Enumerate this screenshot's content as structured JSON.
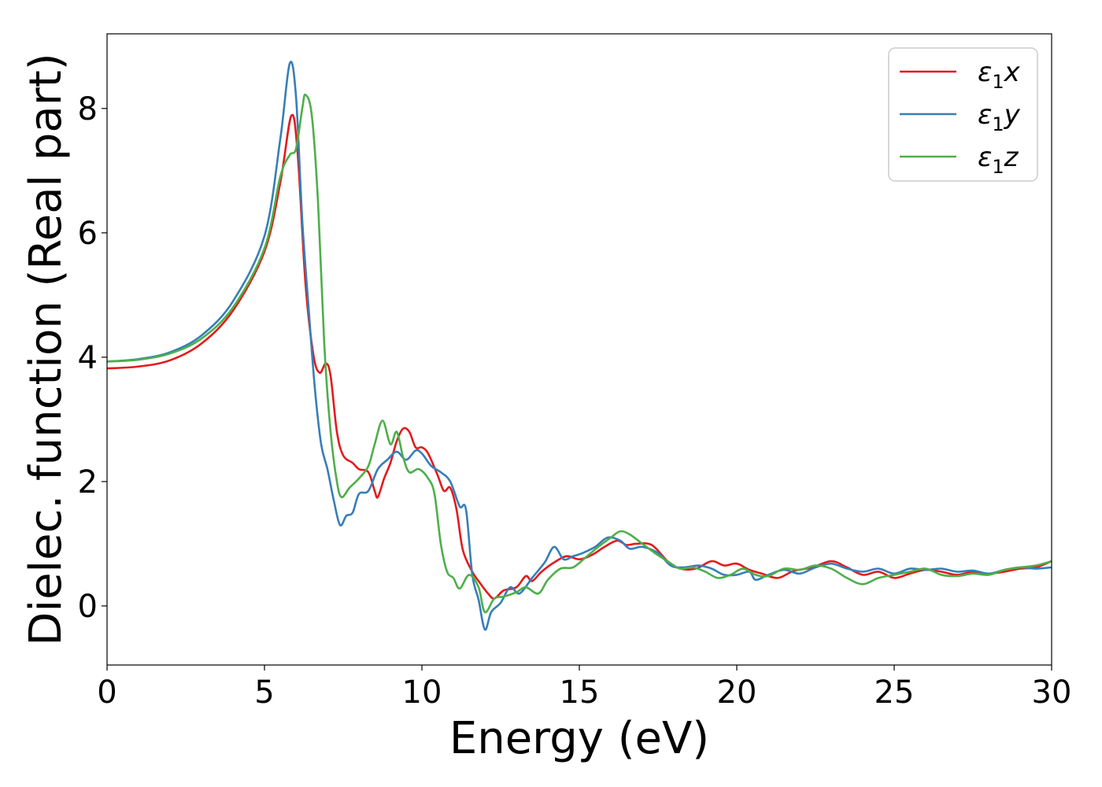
{
  "chart_data": {
    "type": "line",
    "title": "",
    "xlabel": "Energy (eV)",
    "ylabel": "Dielec. function (Real part)",
    "xlim": [
      0,
      30
    ],
    "ylim": [
      -0.95,
      9.2
    ],
    "xticks": [
      0,
      5,
      10,
      15,
      20,
      25,
      30
    ],
    "yticks": [
      0,
      2,
      4,
      6,
      8
    ],
    "grid": false,
    "legend_position": "top-right",
    "series": [
      {
        "name": "ε₁x",
        "legend_main": "ε",
        "legend_sub": "1",
        "legend_var": "x",
        "color": "#e41a1c",
        "points": [
          [
            0,
            3.82
          ],
          [
            1,
            3.85
          ],
          [
            2,
            3.95
          ],
          [
            3,
            4.22
          ],
          [
            4,
            4.75
          ],
          [
            5,
            5.7
          ],
          [
            5.5,
            6.8
          ],
          [
            5.85,
            7.88
          ],
          [
            6.05,
            7.3
          ],
          [
            6.3,
            5.2
          ],
          [
            6.55,
            4.05
          ],
          [
            6.75,
            3.75
          ],
          [
            6.95,
            3.9
          ],
          [
            7.1,
            3.7
          ],
          [
            7.3,
            2.8
          ],
          [
            7.5,
            2.42
          ],
          [
            7.8,
            2.3
          ],
          [
            8.0,
            2.2
          ],
          [
            8.3,
            2.15
          ],
          [
            8.5,
            1.85
          ],
          [
            8.6,
            1.75
          ],
          [
            8.8,
            2.05
          ],
          [
            9.0,
            2.3
          ],
          [
            9.2,
            2.65
          ],
          [
            9.4,
            2.85
          ],
          [
            9.6,
            2.8
          ],
          [
            9.8,
            2.55
          ],
          [
            10.0,
            2.55
          ],
          [
            10.2,
            2.45
          ],
          [
            10.5,
            2.1
          ],
          [
            10.7,
            1.85
          ],
          [
            10.9,
            1.9
          ],
          [
            11.1,
            1.55
          ],
          [
            11.3,
            0.9
          ],
          [
            11.6,
            0.55
          ],
          [
            11.8,
            0.4
          ],
          [
            12.1,
            0.2
          ],
          [
            12.3,
            0.12
          ],
          [
            12.6,
            0.25
          ],
          [
            13.0,
            0.3
          ],
          [
            13.3,
            0.48
          ],
          [
            13.5,
            0.4
          ],
          [
            13.8,
            0.55
          ],
          [
            14.2,
            0.7
          ],
          [
            14.6,
            0.8
          ],
          [
            15.0,
            0.75
          ],
          [
            15.4,
            0.82
          ],
          [
            15.8,
            0.95
          ],
          [
            16.2,
            1.05
          ],
          [
            16.5,
            0.98
          ],
          [
            16.8,
            1.0
          ],
          [
            17.3,
            0.98
          ],
          [
            17.8,
            0.72
          ],
          [
            18.2,
            0.6
          ],
          [
            18.7,
            0.6
          ],
          [
            19.2,
            0.72
          ],
          [
            19.6,
            0.65
          ],
          [
            20.0,
            0.68
          ],
          [
            20.4,
            0.58
          ],
          [
            20.8,
            0.52
          ],
          [
            21.3,
            0.45
          ],
          [
            21.8,
            0.56
          ],
          [
            22.4,
            0.62
          ],
          [
            23.0,
            0.72
          ],
          [
            23.5,
            0.62
          ],
          [
            24.0,
            0.5
          ],
          [
            24.5,
            0.55
          ],
          [
            25.0,
            0.45
          ],
          [
            25.5,
            0.52
          ],
          [
            26.0,
            0.58
          ],
          [
            26.5,
            0.55
          ],
          [
            27.0,
            0.5
          ],
          [
            27.5,
            0.55
          ],
          [
            28.0,
            0.52
          ],
          [
            28.5,
            0.55
          ],
          [
            29.0,
            0.6
          ],
          [
            29.5,
            0.62
          ],
          [
            30,
            0.72
          ]
        ]
      },
      {
        "name": "ε₁y",
        "legend_main": "ε",
        "legend_sub": "1",
        "legend_var": "y",
        "color": "#377eb8",
        "points": [
          [
            0,
            3.93
          ],
          [
            1,
            3.97
          ],
          [
            2,
            4.08
          ],
          [
            3,
            4.35
          ],
          [
            4,
            4.9
          ],
          [
            5,
            5.95
          ],
          [
            5.5,
            7.5
          ],
          [
            5.8,
            8.72
          ],
          [
            6.0,
            8.2
          ],
          [
            6.2,
            6.2
          ],
          [
            6.4,
            4.8
          ],
          [
            6.6,
            3.5
          ],
          [
            6.8,
            2.6
          ],
          [
            7.0,
            2.2
          ],
          [
            7.2,
            1.7
          ],
          [
            7.4,
            1.3
          ],
          [
            7.6,
            1.45
          ],
          [
            7.8,
            1.5
          ],
          [
            8.0,
            1.8
          ],
          [
            8.3,
            1.85
          ],
          [
            8.6,
            2.2
          ],
          [
            8.9,
            2.35
          ],
          [
            9.2,
            2.48
          ],
          [
            9.5,
            2.35
          ],
          [
            9.8,
            2.5
          ],
          [
            10.0,
            2.45
          ],
          [
            10.3,
            2.25
          ],
          [
            10.6,
            2.15
          ],
          [
            10.9,
            2.0
          ],
          [
            11.2,
            1.6
          ],
          [
            11.4,
            1.55
          ],
          [
            11.6,
            0.5
          ],
          [
            11.8,
            0.1
          ],
          [
            12.0,
            -0.38
          ],
          [
            12.2,
            -0.1
          ],
          [
            12.5,
            0.05
          ],
          [
            12.8,
            0.3
          ],
          [
            13.1,
            0.2
          ],
          [
            13.5,
            0.45
          ],
          [
            13.9,
            0.7
          ],
          [
            14.2,
            0.95
          ],
          [
            14.5,
            0.75
          ],
          [
            14.8,
            0.8
          ],
          [
            15.1,
            0.85
          ],
          [
            15.5,
            0.95
          ],
          [
            15.9,
            1.1
          ],
          [
            16.3,
            1.05
          ],
          [
            16.6,
            0.92
          ],
          [
            17.0,
            0.95
          ],
          [
            17.5,
            0.85
          ],
          [
            17.9,
            0.65
          ],
          [
            18.3,
            0.62
          ],
          [
            18.8,
            0.65
          ],
          [
            19.2,
            0.6
          ],
          [
            19.6,
            0.5
          ],
          [
            20.0,
            0.5
          ],
          [
            20.4,
            0.55
          ],
          [
            20.6,
            0.42
          ],
          [
            21.0,
            0.5
          ],
          [
            21.5,
            0.58
          ],
          [
            22.0,
            0.52
          ],
          [
            22.5,
            0.62
          ],
          [
            23.0,
            0.68
          ],
          [
            23.5,
            0.6
          ],
          [
            24.0,
            0.55
          ],
          [
            24.5,
            0.6
          ],
          [
            25.0,
            0.52
          ],
          [
            25.5,
            0.6
          ],
          [
            26.0,
            0.58
          ],
          [
            26.5,
            0.6
          ],
          [
            27.0,
            0.55
          ],
          [
            27.5,
            0.57
          ],
          [
            28.0,
            0.52
          ],
          [
            28.5,
            0.58
          ],
          [
            29.0,
            0.62
          ],
          [
            29.5,
            0.6
          ],
          [
            30,
            0.62
          ]
        ]
      },
      {
        "name": "ε₁z",
        "legend_main": "ε",
        "legend_sub": "1",
        "legend_var": "z",
        "color": "#4daf4a",
        "points": [
          [
            0,
            3.93
          ],
          [
            1,
            3.96
          ],
          [
            2,
            4.06
          ],
          [
            3,
            4.3
          ],
          [
            4,
            4.8
          ],
          [
            5,
            5.75
          ],
          [
            5.5,
            6.9
          ],
          [
            5.8,
            7.25
          ],
          [
            6.0,
            7.35
          ],
          [
            6.2,
            8.0
          ],
          [
            6.3,
            8.22
          ],
          [
            6.5,
            7.9
          ],
          [
            6.7,
            6.5
          ],
          [
            6.9,
            4.2
          ],
          [
            7.1,
            2.8
          ],
          [
            7.3,
            2.0
          ],
          [
            7.45,
            1.75
          ],
          [
            7.7,
            1.9
          ],
          [
            8.0,
            2.05
          ],
          [
            8.3,
            2.25
          ],
          [
            8.5,
            2.6
          ],
          [
            8.75,
            2.98
          ],
          [
            9.0,
            2.6
          ],
          [
            9.2,
            2.8
          ],
          [
            9.4,
            2.4
          ],
          [
            9.6,
            2.15
          ],
          [
            9.9,
            2.2
          ],
          [
            10.2,
            2.05
          ],
          [
            10.4,
            1.8
          ],
          [
            10.6,
            1.0
          ],
          [
            10.8,
            0.55
          ],
          [
            11.0,
            0.45
          ],
          [
            11.2,
            0.28
          ],
          [
            11.5,
            0.5
          ],
          [
            11.8,
            0.3
          ],
          [
            12.0,
            -0.1
          ],
          [
            12.3,
            0.12
          ],
          [
            12.6,
            0.15
          ],
          [
            13.0,
            0.22
          ],
          [
            13.3,
            0.3
          ],
          [
            13.7,
            0.2
          ],
          [
            14.0,
            0.42
          ],
          [
            14.4,
            0.6
          ],
          [
            14.8,
            0.62
          ],
          [
            15.2,
            0.78
          ],
          [
            15.6,
            0.95
          ],
          [
            16.0,
            1.1
          ],
          [
            16.3,
            1.2
          ],
          [
            16.6,
            1.15
          ],
          [
            17.0,
            1.0
          ],
          [
            17.4,
            0.85
          ],
          [
            17.8,
            0.72
          ],
          [
            18.2,
            0.6
          ],
          [
            18.6,
            0.62
          ],
          [
            19.0,
            0.55
          ],
          [
            19.4,
            0.45
          ],
          [
            19.8,
            0.5
          ],
          [
            20.2,
            0.6
          ],
          [
            20.6,
            0.5
          ],
          [
            21.0,
            0.48
          ],
          [
            21.5,
            0.6
          ],
          [
            22.0,
            0.58
          ],
          [
            22.5,
            0.65
          ],
          [
            23.0,
            0.6
          ],
          [
            23.5,
            0.45
          ],
          [
            24.0,
            0.35
          ],
          [
            24.5,
            0.45
          ],
          [
            25.0,
            0.5
          ],
          [
            25.5,
            0.55
          ],
          [
            26.0,
            0.6
          ],
          [
            26.5,
            0.5
          ],
          [
            27.0,
            0.48
          ],
          [
            27.5,
            0.52
          ],
          [
            28.0,
            0.5
          ],
          [
            28.5,
            0.58
          ],
          [
            29.0,
            0.62
          ],
          [
            29.5,
            0.65
          ],
          [
            30,
            0.72
          ]
        ]
      }
    ]
  }
}
